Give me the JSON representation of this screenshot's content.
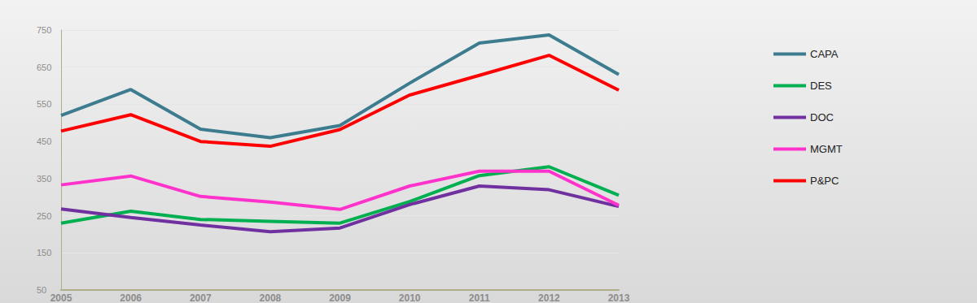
{
  "chart_data": {
    "type": "line",
    "categories": [
      "2005",
      "2006",
      "2007",
      "2008",
      "2009",
      "2010",
      "2011",
      "2012",
      "2013"
    ],
    "series": [
      {
        "name": "CAPA",
        "color": "#3d7b8f",
        "values": [
          520,
          590,
          483,
          460,
          493,
          607,
          715,
          737,
          630
        ]
      },
      {
        "name": "DES",
        "color": "#00b050",
        "values": [
          230,
          262,
          240,
          235,
          230,
          288,
          358,
          382,
          305
        ]
      },
      {
        "name": "DOC",
        "color": "#7030a0",
        "values": [
          268,
          245,
          225,
          207,
          217,
          280,
          330,
          320,
          275
        ]
      },
      {
        "name": "MGMT",
        "color": "#ff33cc",
        "values": [
          333,
          357,
          302,
          287,
          267,
          330,
          370,
          370,
          278
        ]
      },
      {
        "name": "P&PC",
        "color": "#ff0000",
        "values": [
          478,
          522,
          450,
          437,
          482,
          575,
          628,
          682,
          588
        ]
      }
    ],
    "ylim": [
      50,
      750
    ],
    "yticks": [
      50,
      150,
      250,
      350,
      450,
      550,
      650,
      750
    ],
    "grid": true,
    "legend": "right"
  }
}
